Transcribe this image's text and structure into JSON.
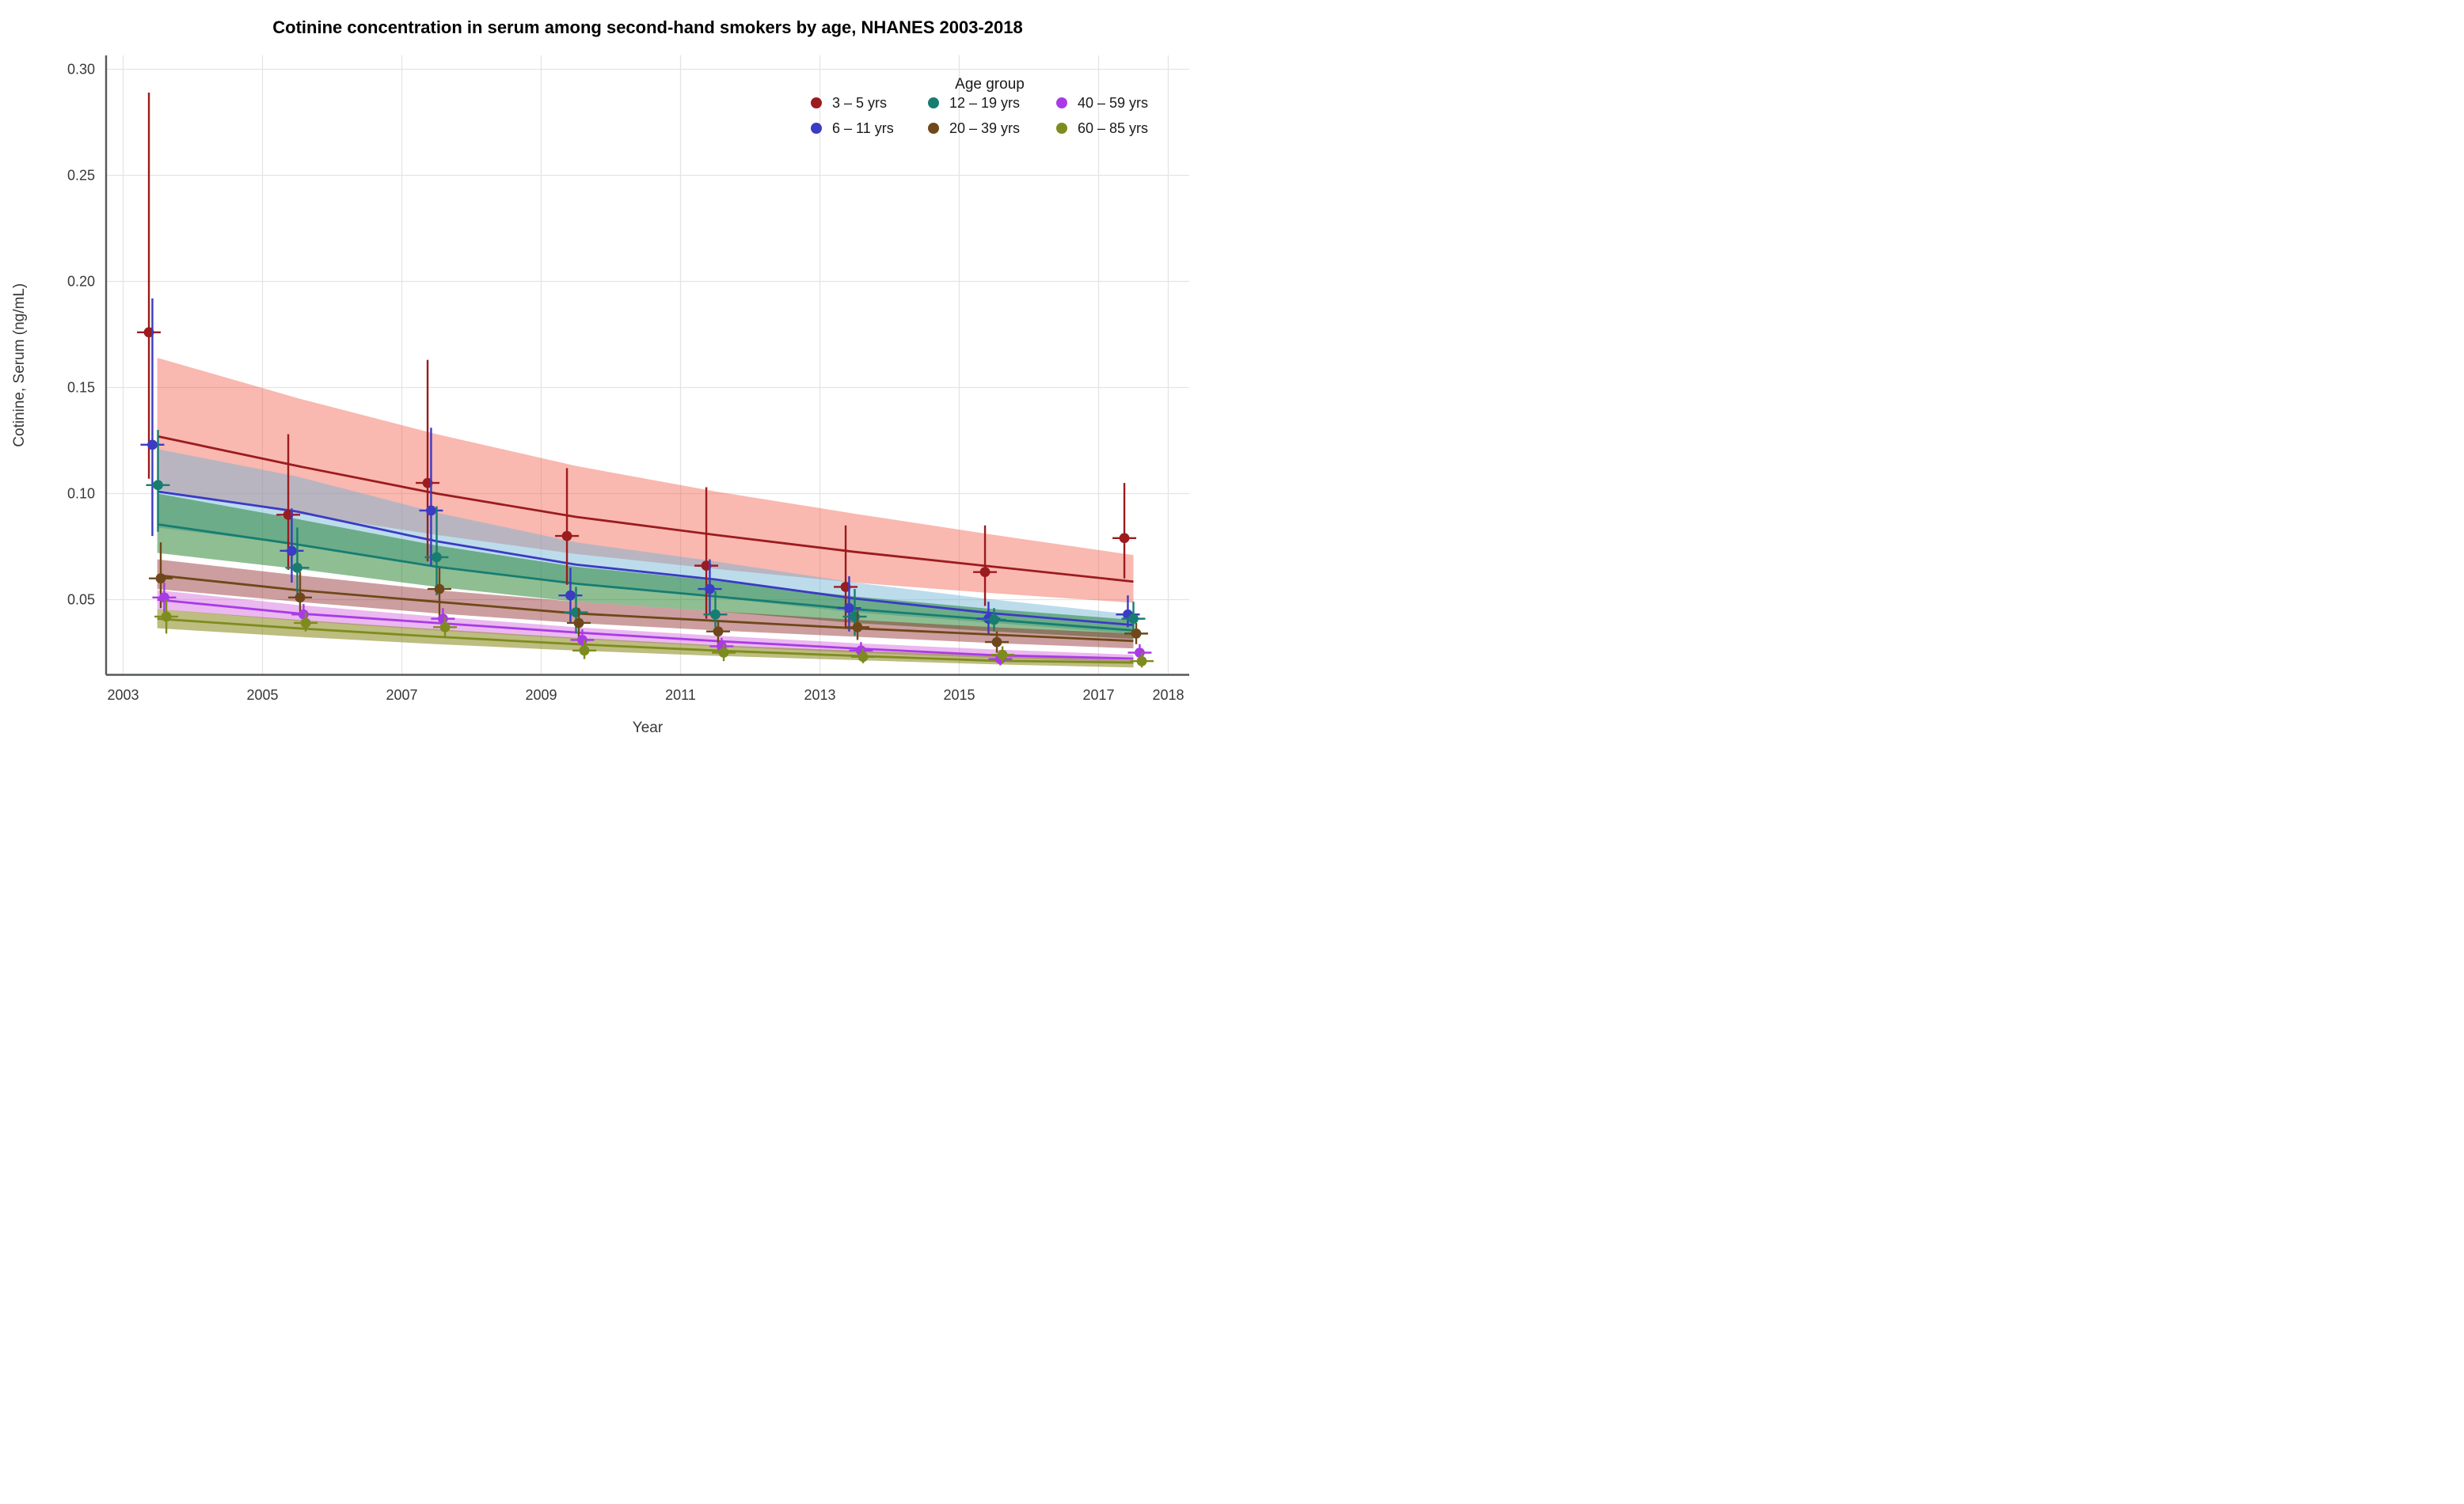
{
  "chart_data": {
    "type": "scatter",
    "title": "Cotinine concentration in serum among second-hand smokers by age, NHANES 2003-2018",
    "xlabel": "Year",
    "ylabel": "Cotinine, Serum (ng/mL)",
    "x_tick_labels": [
      "2003",
      "2005",
      "2007",
      "2009",
      "2011",
      "2013",
      "2015",
      "2017",
      "2018"
    ],
    "x_ticks": [
      2003,
      2005,
      2007,
      2009,
      2011,
      2013,
      2015,
      2017,
      2018
    ],
    "y_tick_labels": [
      "0.05",
      "0.10",
      "0.15",
      "0.20",
      "0.25",
      "0.30"
    ],
    "y_ticks": [
      0.05,
      0.1,
      0.15,
      0.2,
      0.25,
      0.3
    ],
    "xlim": [
      2002.75,
      2018.3
    ],
    "ylim": [
      0.014,
      0.305
    ],
    "grid": "on",
    "legend": {
      "title": "Age group",
      "position": "top-right-inside",
      "columns": [
        [
          "3 – 5 yrs",
          "6 – 11 yrs"
        ],
        [
          "12 – 19 yrs",
          "20 – 39 yrs"
        ],
        [
          "40 – 59 yrs",
          "60 – 85 yrs"
        ]
      ]
    },
    "survey_cycles": [
      2003.5,
      2005.5,
      2007.5,
      2009.5,
      2011.5,
      2013.5,
      2015.5,
      2017.5
    ],
    "fit_x": [
      2003.49,
      2005.5,
      2007.5,
      2009.5,
      2011.5,
      2013.5,
      2015.5,
      2017.5
    ],
    "series": [
      {
        "name": "3 – 5 yrs",
        "color": "#9B1B1E",
        "band_fill": "rgba(242,98,80,0.45)",
        "dodge": 0.37,
        "values": [
          0.176,
          0.09,
          0.105,
          0.08,
          0.066,
          0.056,
          0.063,
          0.079
        ],
        "ci_low": [
          0.107,
          0.064,
          0.068,
          0.057,
          0.041,
          0.037,
          0.047,
          0.06
        ],
        "ci_high": [
          0.289,
          0.128,
          0.163,
          0.112,
          0.103,
          0.085,
          0.085,
          0.105
        ],
        "fit": [
          0.127,
          0.113,
          0.1,
          0.089,
          0.0805,
          0.0725,
          0.0655,
          0.0585
        ],
        "band_top": [
          0.164,
          0.145,
          0.128,
          0.113,
          0.101,
          0.0905,
          0.0805,
          0.071
        ],
        "band_bot": [
          0.102,
          0.0905,
          0.0805,
          0.0715,
          0.0645,
          0.058,
          0.053,
          0.0485
        ]
      },
      {
        "name": "6 – 11 yrs",
        "color": "#3B3BC4",
        "band_fill": "rgba(106,178,213,0.45)",
        "dodge": 0.42,
        "values": [
          0.123,
          0.073,
          0.092,
          0.052,
          0.055,
          0.046,
          0.041,
          0.043
        ],
        "ci_low": [
          0.08,
          0.058,
          0.066,
          0.039,
          0.043,
          0.035,
          0.034,
          0.037
        ],
        "ci_high": [
          0.192,
          0.093,
          0.131,
          0.065,
          0.069,
          0.061,
          0.049,
          0.052
        ],
        "fit": [
          0.101,
          0.0915,
          0.0775,
          0.0665,
          0.0595,
          0.0505,
          0.0435,
          0.038
        ],
        "band_top": [
          0.121,
          0.108,
          0.091,
          0.077,
          0.068,
          0.058,
          0.05,
          0.043
        ],
        "band_bot": [
          0.084,
          0.076,
          0.066,
          0.057,
          0.051,
          0.044,
          0.039,
          0.034
        ]
      },
      {
        "name": "12 – 19 yrs",
        "color": "#177D70",
        "band_fill": "rgba(20,120,30,0.48)",
        "dodge": 0.5,
        "values": [
          0.104,
          0.065,
          0.07,
          0.044,
          0.043,
          0.042,
          0.0405,
          0.041
        ],
        "ci_low": [
          0.082,
          0.052,
          0.052,
          0.034,
          0.037,
          0.033,
          0.035,
          0.034
        ],
        "ci_high": [
          0.13,
          0.084,
          0.094,
          0.056,
          0.054,
          0.055,
          0.046,
          0.049
        ],
        "fit": [
          0.0855,
          0.076,
          0.0655,
          0.0575,
          0.0515,
          0.0455,
          0.0405,
          0.0355
        ],
        "band_top": [
          0.1,
          0.088,
          0.0755,
          0.0655,
          0.059,
          0.0515,
          0.0455,
          0.0405
        ],
        "band_bot": [
          0.072,
          0.0645,
          0.056,
          0.049,
          0.0445,
          0.039,
          0.035,
          0.0315
        ]
      },
      {
        "name": "20 – 39 yrs",
        "color": "#6E481A",
        "band_fill": "rgba(135,25,26,0.42)",
        "dodge": 0.54,
        "values": [
          0.06,
          0.051,
          0.055,
          0.039,
          0.035,
          0.037,
          0.03,
          0.034
        ],
        "ci_low": [
          0.046,
          0.043,
          0.04,
          0.031,
          0.029,
          0.031,
          0.025,
          0.029
        ],
        "ci_high": [
          0.077,
          0.063,
          0.065,
          0.046,
          0.04,
          0.045,
          0.035,
          0.039
        ],
        "fit": [
          0.0615,
          0.0545,
          0.049,
          0.0435,
          0.04,
          0.0365,
          0.0335,
          0.0305
        ],
        "band_top": [
          0.069,
          0.0615,
          0.0545,
          0.049,
          0.0445,
          0.0405,
          0.037,
          0.034
        ],
        "band_bot": [
          0.055,
          0.049,
          0.0435,
          0.039,
          0.0355,
          0.0325,
          0.0295,
          0.027
        ]
      },
      {
        "name": "40 – 59 yrs",
        "color": "#A93BE6",
        "band_fill": "rgba(210,97,219,0.45)",
        "dodge": 0.59,
        "values": [
          0.051,
          0.043,
          0.041,
          0.031,
          0.028,
          0.026,
          0.022,
          0.025
        ],
        "ci_low": [
          0.044,
          0.038,
          0.036,
          0.027,
          0.024,
          0.022,
          0.019,
          0.021
        ],
        "ci_high": [
          0.058,
          0.048,
          0.046,
          0.036,
          0.032,
          0.03,
          0.026,
          0.029
        ],
        "fit": [
          0.05,
          0.0435,
          0.039,
          0.0345,
          0.0305,
          0.027,
          0.0238,
          0.0222
        ],
        "band_top": [
          0.0545,
          0.0475,
          0.042,
          0.037,
          0.033,
          0.0295,
          0.0265,
          0.024
        ],
        "band_bot": [
          0.0455,
          0.04,
          0.0355,
          0.0315,
          0.028,
          0.025,
          0.0225,
          0.0205
        ]
      },
      {
        "name": "60 – 85 yrs",
        "color": "#7E8C1F",
        "band_fill": "rgba(121,123,0,0.5)",
        "dodge": 0.62,
        "values": [
          0.042,
          0.039,
          0.037,
          0.026,
          0.025,
          0.023,
          0.024,
          0.021
        ],
        "ci_low": [
          0.034,
          0.035,
          0.032,
          0.022,
          0.021,
          0.02,
          0.02,
          0.018
        ],
        "ci_high": [
          0.05,
          0.044,
          0.042,
          0.031,
          0.029,
          0.027,
          0.028,
          0.025
        ],
        "fit": [
          0.041,
          0.0365,
          0.0325,
          0.029,
          0.026,
          0.0235,
          0.0212,
          0.0203
        ],
        "band_top": [
          0.0455,
          0.0405,
          0.036,
          0.032,
          0.0285,
          0.026,
          0.0235,
          0.0215
        ],
        "band_bot": [
          0.0365,
          0.0325,
          0.029,
          0.026,
          0.0235,
          0.0215,
          0.0195,
          0.018
        ]
      }
    ],
    "style": {
      "grid_color": "#E4E4E4",
      "axis_color": "#54585C",
      "tick_label_color": "#383838",
      "title_color": "#000000"
    }
  }
}
